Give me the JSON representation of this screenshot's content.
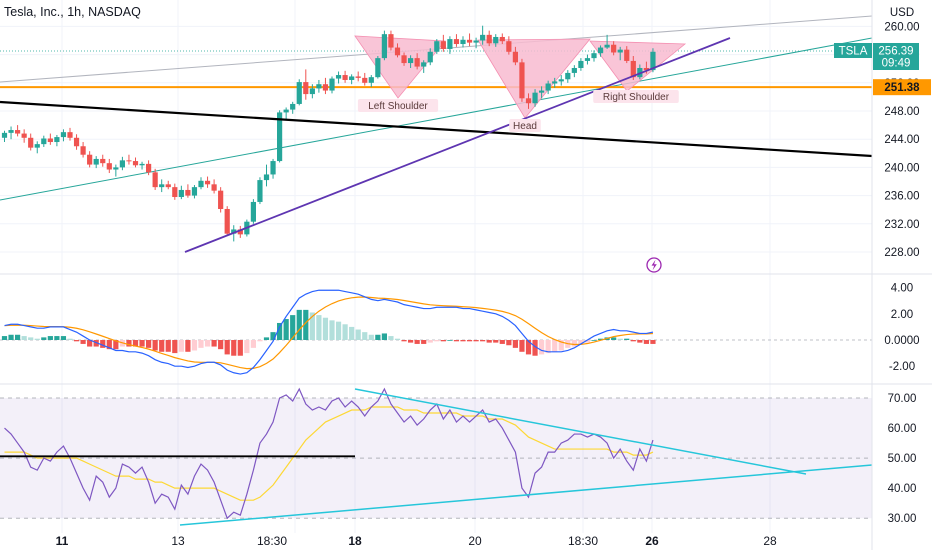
{
  "header": {
    "title": "Tesla, Inc., 1h, NASDAQ",
    "currency": "USD"
  },
  "colors": {
    "up": "#26a69a",
    "down": "#ef5350",
    "macd_line": "#2962ff",
    "signal_line": "#ff9800",
    "rsi_line": "#7e57c2",
    "rsi_ma": "#fdd835",
    "pattern_fill": "#f8bbd0",
    "support_line": "#ff9800",
    "trend_purple": "#5e35b1",
    "rsi_trend": "#26c6da",
    "black_line": "#000000"
  },
  "chart_data": [
    {
      "type": "candlestick",
      "title": "Tesla, Inc., 1h, NASDAQ",
      "ylim": [
        226,
        262
      ],
      "yticks": [
        "260.00",
        "256.00",
        "252.00",
        "248.00",
        "244.00",
        "240.00",
        "236.00",
        "232.00",
        "228.00"
      ],
      "xticks": [
        "11",
        "13",
        "18:30",
        "18",
        "20",
        "18:30",
        "26",
        "28"
      ],
      "last_price": {
        "symbol": "TSLA",
        "value": "256.39",
        "countdown": "09:49"
      },
      "support_price": "251.38",
      "patterns": [
        "Left Shoulder",
        "Head",
        "Right Shoulder"
      ],
      "candles": [
        [
          244.2,
          245.2,
          243.6,
          244.9
        ],
        [
          244.9,
          245.8,
          244.0,
          245.3
        ],
        [
          245.3,
          246.0,
          244.4,
          244.8
        ],
        [
          244.8,
          245.4,
          243.5,
          244.2
        ],
        [
          244.2,
          244.8,
          242.4,
          242.8
        ],
        [
          242.8,
          243.7,
          242.0,
          243.3
        ],
        [
          243.3,
          244.5,
          242.9,
          244.1
        ],
        [
          244.1,
          244.8,
          243.2,
          243.6
        ],
        [
          243.6,
          244.6,
          243.0,
          244.3
        ],
        [
          244.3,
          245.4,
          243.7,
          245.0
        ],
        [
          245.0,
          245.6,
          243.8,
          244.2
        ],
        [
          244.2,
          244.7,
          242.5,
          243.0
        ],
        [
          243.0,
          243.6,
          241.4,
          241.8
        ],
        [
          241.8,
          242.3,
          240.0,
          240.4
        ],
        [
          240.4,
          241.6,
          239.9,
          241.2
        ],
        [
          241.2,
          241.8,
          240.1,
          240.6
        ],
        [
          240.6,
          241.2,
          239.2,
          239.7
        ],
        [
          239.7,
          240.4,
          238.7,
          240.0
        ],
        [
          240.0,
          241.5,
          239.6,
          241.0
        ],
        [
          241.0,
          241.8,
          240.4,
          240.9
        ],
        [
          240.9,
          241.4,
          240.0,
          240.3
        ],
        [
          240.3,
          240.8,
          239.7,
          240.5
        ],
        [
          240.5,
          241.0,
          238.9,
          239.3
        ],
        [
          239.3,
          239.8,
          236.8,
          237.2
        ],
        [
          237.2,
          238.3,
          236.5,
          237.6
        ],
        [
          237.6,
          238.1,
          236.9,
          237.2
        ],
        [
          237.2,
          237.7,
          235.4,
          235.8
        ],
        [
          235.8,
          237.4,
          235.5,
          236.8
        ],
        [
          236.8,
          237.6,
          235.7,
          236.0
        ],
        [
          236.0,
          237.5,
          235.6,
          237.2
        ],
        [
          237.2,
          238.6,
          236.9,
          238.1
        ],
        [
          238.1,
          238.7,
          237.1,
          237.6
        ],
        [
          237.6,
          238.3,
          236.3,
          236.7
        ],
        [
          236.7,
          237.2,
          233.6,
          234.1
        ],
        [
          234.1,
          234.5,
          230.3,
          230.6
        ],
        [
          230.6,
          231.8,
          229.5,
          231.2
        ],
        [
          231.2,
          231.7,
          230.0,
          230.5
        ],
        [
          230.5,
          232.6,
          230.2,
          232.3
        ],
        [
          232.3,
          235.5,
          232.0,
          235.1
        ],
        [
          235.1,
          238.6,
          234.8,
          238.2
        ],
        [
          238.2,
          240.4,
          237.3,
          239.0
        ],
        [
          239.0,
          241.2,
          238.4,
          240.9
        ],
        [
          240.9,
          248.1,
          240.7,
          247.8
        ],
        [
          247.8,
          248.5,
          246.8,
          248.2
        ],
        [
          248.2,
          249.3,
          247.6,
          249.0
        ],
        [
          249.0,
          252.5,
          248.8,
          252.1
        ],
        [
          252.1,
          253.9,
          249.6,
          250.4
        ],
        [
          250.4,
          251.8,
          249.8,
          251.2
        ],
        [
          251.2,
          252.4,
          250.6,
          251.8
        ],
        [
          251.8,
          252.7,
          250.4,
          250.9
        ],
        [
          250.9,
          252.9,
          250.5,
          252.6
        ],
        [
          252.6,
          253.6,
          251.9,
          253.1
        ],
        [
          253.1,
          253.7,
          252.0,
          252.4
        ],
        [
          252.4,
          253.2,
          251.8,
          252.9
        ],
        [
          252.9,
          253.6,
          252.2,
          252.7
        ],
        [
          252.7,
          253.4,
          251.6,
          252.0
        ],
        [
          252.0,
          253.1,
          251.4,
          252.8
        ],
        [
          252.8,
          255.8,
          252.6,
          255.5
        ],
        [
          255.5,
          259.4,
          255.2,
          258.9
        ],
        [
          258.9,
          259.4,
          256.6,
          257.0
        ],
        [
          257.0,
          257.6,
          255.6,
          255.9
        ],
        [
          255.9,
          256.3,
          254.4,
          254.8
        ],
        [
          254.8,
          255.9,
          254.1,
          255.5
        ],
        [
          255.5,
          256.2,
          253.9,
          254.3
        ],
        [
          254.3,
          255.2,
          253.4,
          254.9
        ],
        [
          254.9,
          256.9,
          254.5,
          256.4
        ],
        [
          256.4,
          258.2,
          256.1,
          257.9
        ],
        [
          257.9,
          258.8,
          256.4,
          256.8
        ],
        [
          256.8,
          258.6,
          256.1,
          258.2
        ],
        [
          258.2,
          258.9,
          257.1,
          257.5
        ],
        [
          257.5,
          258.6,
          257.0,
          258.1
        ],
        [
          258.1,
          259.0,
          257.2,
          257.7
        ],
        [
          257.7,
          258.4,
          256.9,
          258.0
        ],
        [
          258.0,
          260.1,
          257.4,
          258.8
        ],
        [
          258.8,
          259.4,
          257.2,
          257.6
        ],
        [
          257.6,
          258.9,
          257.1,
          258.5
        ],
        [
          258.5,
          259.0,
          257.5,
          257.9
        ],
        [
          257.9,
          258.6,
          256.0,
          256.4
        ],
        [
          256.4,
          257.1,
          254.5,
          254.9
        ],
        [
          254.9,
          255.4,
          249.3,
          249.8
        ],
        [
          249.8,
          250.5,
          248.3,
          249.1
        ],
        [
          249.1,
          251.1,
          248.6,
          250.6
        ],
        [
          250.6,
          251.5,
          249.8,
          250.9
        ],
        [
          250.9,
          252.3,
          250.4,
          251.9
        ],
        [
          251.9,
          252.7,
          251.3,
          252.2
        ],
        [
          252.2,
          253.1,
          251.6,
          252.5
        ],
        [
          252.5,
          253.8,
          252.0,
          253.4
        ],
        [
          253.4,
          254.5,
          252.8,
          254.1
        ],
        [
          254.1,
          255.5,
          253.7,
          255.1
        ],
        [
          255.1,
          256.0,
          254.6,
          255.5
        ],
        [
          255.5,
          256.6,
          255.0,
          256.2
        ],
        [
          256.2,
          257.3,
          255.7,
          257.0
        ],
        [
          257.0,
          258.8,
          256.8,
          257.4
        ],
        [
          257.4,
          257.9,
          255.9,
          256.3
        ],
        [
          256.3,
          257.1,
          255.2,
          256.7
        ],
        [
          256.7,
          257.2,
          254.8,
          255.1
        ],
        [
          255.1,
          255.8,
          252.4,
          252.8
        ],
        [
          252.8,
          254.6,
          252.5,
          254.1
        ],
        [
          254.1,
          255.0,
          253.3,
          253.8
        ],
        [
          253.8,
          256.9,
          253.5,
          256.4
        ]
      ]
    },
    {
      "type": "macd",
      "ylim": [
        -3,
        5
      ],
      "yticks": [
        "4.00",
        "2.00",
        "0.0000",
        "-2.00"
      ],
      "histogram": [
        0.3,
        0.4,
        0.4,
        0.3,
        0.2,
        0.1,
        0.2,
        0.3,
        0.3,
        0.3,
        0.1,
        -0.1,
        -0.3,
        -0.5,
        -0.5,
        -0.6,
        -0.7,
        -0.7,
        -0.5,
        -0.5,
        -0.5,
        -0.5,
        -0.6,
        -0.8,
        -0.9,
        -0.9,
        -1.0,
        -0.9,
        -0.9,
        -0.8,
        -0.6,
        -0.5,
        -0.5,
        -0.7,
        -1.1,
        -1.2,
        -1.2,
        -1.0,
        -0.6,
        -0.1,
        0.2,
        0.6,
        1.3,
        1.6,
        1.9,
        2.3,
        2.3,
        2.1,
        1.9,
        1.7,
        1.5,
        1.4,
        1.2,
        1.0,
        0.8,
        0.6,
        0.4,
        0.4,
        0.5,
        0.3,
        0.1,
        -0.1,
        -0.2,
        -0.3,
        -0.3,
        -0.2,
        -0.1,
        -0.1,
        0.0,
        -0.1,
        -0.1,
        -0.1,
        -0.1,
        -0.1,
        -0.2,
        -0.2,
        -0.3,
        -0.4,
        -0.6,
        -0.9,
        -1.1,
        -1.2,
        -1.1,
        -1.0,
        -0.9,
        -0.8,
        -0.6,
        -0.5,
        -0.3,
        -0.2,
        0.0,
        0.1,
        0.2,
        0.2,
        0.1,
        0.1,
        -0.1,
        -0.2,
        -0.3,
        -0.3
      ],
      "macd": [
        1.1,
        1.2,
        1.2,
        1.1,
        1.0,
        0.9,
        0.9,
        1.0,
        1.0,
        1.0,
        0.8,
        0.6,
        0.3,
        0.0,
        -0.2,
        -0.4,
        -0.6,
        -0.8,
        -0.8,
        -0.9,
        -0.9,
        -1.0,
        -1.2,
        -1.5,
        -1.7,
        -1.8,
        -2.0,
        -2.0,
        -2.1,
        -2.0,
        -1.8,
        -1.7,
        -1.7,
        -1.9,
        -2.3,
        -2.5,
        -2.6,
        -2.5,
        -2.1,
        -1.5,
        -0.8,
        -0.1,
        1.0,
        1.8,
        2.5,
        3.2,
        3.5,
        3.7,
        3.8,
        3.8,
        3.8,
        3.8,
        3.7,
        3.6,
        3.5,
        3.3,
        3.1,
        3.0,
        3.1,
        3.0,
        2.9,
        2.7,
        2.6,
        2.5,
        2.4,
        2.4,
        2.5,
        2.5,
        2.5,
        2.5,
        2.4,
        2.4,
        2.3,
        2.2,
        2.1,
        2.0,
        1.8,
        1.5,
        1.1,
        0.5,
        -0.1,
        -0.5,
        -0.8,
        -0.9,
        -0.9,
        -0.9,
        -0.8,
        -0.6,
        -0.3,
        0.0,
        0.3,
        0.5,
        0.7,
        0.8,
        0.7,
        0.7,
        0.6,
        0.5,
        0.5,
        0.6
      ]
    },
    {
      "type": "rsi",
      "ylim": [
        26,
        74
      ],
      "yticks": [
        "70.00",
        "60.00",
        "50.00",
        "40.00",
        "30.00"
      ],
      "bands": [
        30,
        70
      ],
      "values": [
        60,
        58,
        55,
        52,
        47,
        46,
        50,
        49,
        52,
        54,
        50,
        45,
        40,
        36,
        44,
        42,
        37,
        40,
        48,
        47,
        45,
        47,
        42,
        35,
        38,
        37,
        33,
        41,
        38,
        44,
        48,
        46,
        42,
        36,
        30,
        32,
        31,
        38,
        46,
        55,
        58,
        62,
        70,
        71,
        69,
        73,
        68,
        66,
        67,
        66,
        69,
        70,
        67,
        69,
        67,
        64,
        67,
        69,
        73,
        68,
        65,
        62,
        64,
        61,
        63,
        66,
        68,
        63,
        66,
        62,
        64,
        62,
        64,
        66,
        62,
        63,
        60,
        56,
        52,
        40,
        37,
        45,
        47,
        52,
        52,
        55,
        56,
        58,
        58,
        57,
        58,
        57,
        55,
        50,
        53,
        49,
        46,
        53,
        49,
        56
      ],
      "rsi_ma": [
        52,
        52,
        52,
        52,
        51,
        50,
        50,
        50,
        50,
        50,
        50,
        50,
        49,
        48,
        47,
        46,
        45,
        44,
        44,
        44,
        43,
        43,
        43,
        42,
        42,
        41,
        40,
        40,
        40,
        40,
        40,
        40,
        40,
        39,
        38,
        37,
        36,
        36,
        36,
        37,
        39,
        41,
        44,
        47,
        50,
        53,
        56,
        58,
        60,
        62,
        63,
        64,
        65,
        66,
        66,
        66,
        67,
        67,
        67,
        67,
        67,
        66,
        66,
        66,
        65,
        65,
        65,
        65,
        65,
        65,
        64,
        64,
        64,
        64,
        63,
        63,
        63,
        62,
        61,
        59,
        57,
        56,
        55,
        54,
        53,
        53,
        53,
        53,
        53,
        53,
        53,
        53,
        53,
        52,
        52,
        52,
        51,
        51,
        51,
        52
      ]
    }
  ]
}
